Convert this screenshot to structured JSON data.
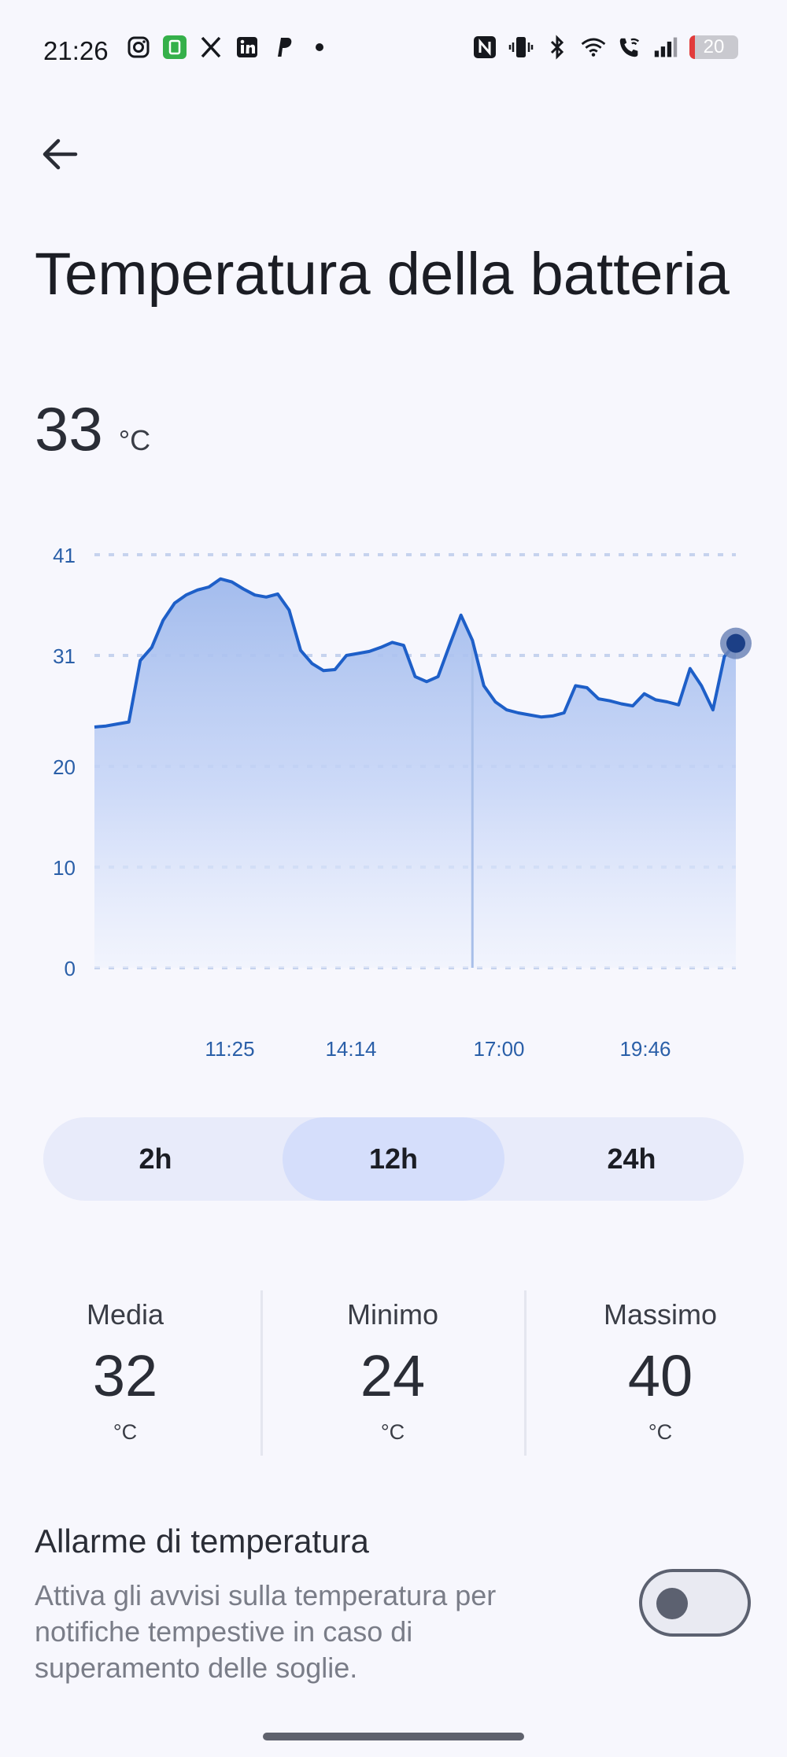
{
  "status_bar": {
    "time": "21:26",
    "battery_level": "20",
    "left_icons": [
      "instagram-icon",
      "app-icon",
      "x-icon",
      "linkedin-icon",
      "paypal-icon",
      "dot-icon"
    ],
    "right_icons": [
      "nfc-icon",
      "vibrate-icon",
      "bluetooth-icon",
      "wifi-icon",
      "wifi-call-icon",
      "signal-icon",
      "battery-icon"
    ]
  },
  "header": {
    "back_icon": "arrow-left-icon",
    "title": "Temperatura della batteria"
  },
  "current": {
    "value": "33",
    "unit": "°C"
  },
  "chart_data": {
    "type": "area",
    "y_ticks": [
      "41",
      "31",
      "20",
      "10",
      "0"
    ],
    "y_tick_values": [
      41,
      31,
      20,
      10,
      0
    ],
    "ylim": [
      0,
      41
    ],
    "x_tick_labels": [
      "11:25",
      "14:14",
      "17:00",
      "19:46"
    ],
    "grid": true,
    "line_color": "#1e5fc8",
    "fill_color": "#a9c1ee",
    "series": [
      {
        "values": [
          23.9,
          24.0,
          24.2,
          24.4,
          30.5,
          31.8,
          34.5,
          36.2,
          37.0,
          37.5,
          37.8,
          38.6,
          38.3,
          37.6,
          37.0,
          36.8,
          37.1,
          35.5,
          31.5,
          30.2,
          29.5,
          29.6,
          31.0,
          31.2,
          31.4,
          31.8,
          32.3,
          32.0,
          28.9,
          28.4,
          28.9,
          32.0,
          35.0,
          32.5,
          28.0,
          26.4,
          25.6,
          25.3,
          25.1,
          24.9,
          25.0,
          25.3,
          28.0,
          27.8,
          26.7,
          26.5,
          26.2,
          26.0,
          27.2,
          26.6,
          26.4,
          26.1,
          29.7,
          28.0,
          25.6,
          30.9,
          32.2
        ]
      }
    ],
    "marker_value": 32.2,
    "vertical_marker_index": 33
  },
  "range_selector": {
    "options": [
      "2h",
      "12h",
      "24h"
    ],
    "selected": "12h"
  },
  "stats": {
    "avg_label": "Media",
    "avg_value": "32",
    "avg_unit": "°C",
    "min_label": "Minimo",
    "min_value": "24",
    "min_unit": "°C",
    "max_label": "Massimo",
    "max_value": "40",
    "max_unit": "°C"
  },
  "alarm": {
    "title": "Allarme di temperatura",
    "description": "Attiva gli avvisi sulla temperatura per notifiche tempestive in caso di superamento delle soglie.",
    "enabled": false
  }
}
